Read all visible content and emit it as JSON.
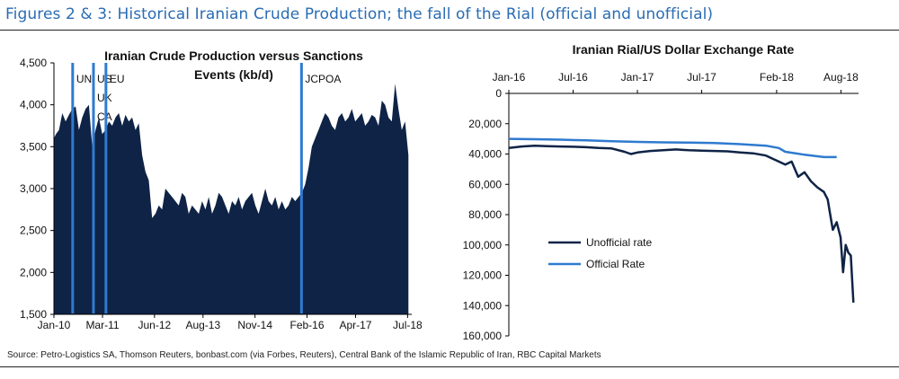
{
  "figure_title": "Figures 2 & 3: Historical Iranian Crude Production; the fall of the Rial (official and unofficial)",
  "source": "Source: Petro-Logistics SA, Thomson Reuters, bonbast.com (via Forbes, Reuters), Central Bank of the Islamic Republic of Iran, RBC Capital Markets",
  "colors": {
    "title": "#2a6cb3",
    "area_fill": "#0f2346",
    "event_line": "#2f7ad0",
    "unofficial": "#0f2346",
    "official": "#2f7ad0"
  },
  "chart_data": [
    {
      "type": "area",
      "title": "Iranian Crude Production versus Sanctions Events (kb/d)",
      "title_lines": [
        "Iranian Crude Production versus Sanctions",
        "Events (kb/d)"
      ],
      "xlabel": "",
      "ylabel": "",
      "xlim": [
        2010.0,
        2018.6
      ],
      "ylim": [
        1500,
        4500
      ],
      "y_ticks": [
        1500,
        2000,
        2500,
        3000,
        3500,
        4000,
        4500
      ],
      "y_tick_labels": [
        "1,500",
        "2,000",
        "2,500",
        "3,000",
        "3,500",
        "4,000",
        "4,500"
      ],
      "x_ticks": [
        2010.0,
        2011.167,
        2012.417,
        2013.583,
        2014.833,
        2016.083,
        2017.25,
        2018.5
      ],
      "x_tick_labels": [
        "Jan-10",
        "Mar-11",
        "Jun-12",
        "Aug-13",
        "Nov-14",
        "Feb-16",
        "Apr-17",
        "Jul-18"
      ],
      "events": [
        {
          "date": 2010.45,
          "label_lines": [
            "UN"
          ]
        },
        {
          "date": 2010.95,
          "label_lines": [
            "US",
            "UK",
            "CA"
          ]
        },
        {
          "date": 2011.25,
          "label_lines": [
            "EU"
          ]
        },
        {
          "date": 2015.95,
          "label_lines": [
            "JCPOA"
          ]
        }
      ],
      "series": [
        {
          "name": "Iranian Crude Production",
          "x": [
            2010.0,
            2010.05,
            2010.12,
            2010.2,
            2010.28,
            2010.36,
            2010.44,
            2010.52,
            2010.6,
            2010.68,
            2010.76,
            2010.84,
            2010.92,
            2011.0,
            2011.08,
            2011.16,
            2011.24,
            2011.32,
            2011.4,
            2011.48,
            2011.56,
            2011.64,
            2011.72,
            2011.8,
            2011.88,
            2011.96,
            2012.04,
            2012.12,
            2012.2,
            2012.28,
            2012.36,
            2012.44,
            2012.52,
            2012.6,
            2012.68,
            2012.76,
            2012.84,
            2012.92,
            2013.0,
            2013.08,
            2013.16,
            2013.24,
            2013.32,
            2013.4,
            2013.48,
            2013.56,
            2013.64,
            2013.72,
            2013.8,
            2013.88,
            2013.96,
            2014.04,
            2014.12,
            2014.2,
            2014.28,
            2014.36,
            2014.44,
            2014.52,
            2014.6,
            2014.68,
            2014.76,
            2014.84,
            2014.92,
            2015.0,
            2015.08,
            2015.16,
            2015.24,
            2015.32,
            2015.4,
            2015.48,
            2015.56,
            2015.64,
            2015.72,
            2015.8,
            2015.88,
            2015.96,
            2016.04,
            2016.12,
            2016.2,
            2016.28,
            2016.36,
            2016.44,
            2016.52,
            2016.6,
            2016.68,
            2016.76,
            2016.84,
            2016.92,
            2017.0,
            2017.08,
            2017.16,
            2017.24,
            2017.32,
            2017.4,
            2017.48,
            2017.56,
            2017.64,
            2017.72,
            2017.8,
            2017.88,
            2017.96,
            2018.04,
            2018.12,
            2018.2,
            2018.28,
            2018.36,
            2018.44,
            2018.52
          ],
          "values": [
            3600,
            3650,
            3700,
            3900,
            3800,
            3880,
            3950,
            3980,
            3700,
            3850,
            3950,
            4000,
            3500,
            3700,
            3850,
            3650,
            3700,
            3800,
            3750,
            3850,
            3900,
            3750,
            3880,
            3800,
            3850,
            3700,
            3780,
            3400,
            3200,
            3100,
            2650,
            2700,
            2800,
            2750,
            3000,
            2950,
            2900,
            2850,
            2800,
            2950,
            2900,
            2700,
            2800,
            2750,
            2700,
            2850,
            2750,
            2900,
            2700,
            2800,
            2950,
            2900,
            2800,
            2700,
            2850,
            2800,
            2900,
            2750,
            2850,
            2900,
            2950,
            2800,
            2700,
            2850,
            3000,
            2850,
            2800,
            2900,
            2750,
            2850,
            2750,
            2800,
            2900,
            2850,
            2900,
            2950,
            3050,
            3250,
            3500,
            3600,
            3700,
            3800,
            3900,
            3850,
            3750,
            3700,
            3850,
            3900,
            3800,
            3850,
            3950,
            3800,
            3850,
            3900,
            3750,
            3800,
            3880,
            3850,
            3750,
            4050,
            4000,
            3850,
            3800,
            4250,
            3950,
            3700,
            3800,
            3400
          ]
        }
      ]
    },
    {
      "type": "line",
      "title": "Iranian Rial/US Dollar Exchange Rate",
      "xlabel": "",
      "ylabel": "",
      "y_inverted": true,
      "xlim": [
        2016.0,
        2018.72
      ],
      "ylim": [
        0,
        160000
      ],
      "y_ticks": [
        0,
        20000,
        40000,
        60000,
        80000,
        100000,
        120000,
        140000,
        160000
      ],
      "y_tick_labels": [
        "0",
        "20,000",
        "40,000",
        "60,000",
        "80,000",
        "100,000",
        "120,000",
        "140,000",
        "160,000"
      ],
      "x_ticks": [
        2016.0,
        2016.5,
        2017.0,
        2017.5,
        2018.083,
        2018.583
      ],
      "x_tick_labels": [
        "Jan-16",
        "Jul-16",
        "Jan-17",
        "Jul-17",
        "Feb-18",
        "Aug-18"
      ],
      "legend": "lower-left",
      "series": [
        {
          "name": "Unofficial rate",
          "x": [
            2016.0,
            2016.1,
            2016.2,
            2016.3,
            2016.4,
            2016.5,
            2016.6,
            2016.7,
            2016.8,
            2016.9,
            2016.95,
            2017.0,
            2017.1,
            2017.2,
            2017.3,
            2017.4,
            2017.5,
            2017.6,
            2017.7,
            2017.8,
            2017.9,
            2018.0,
            2018.05,
            2018.1,
            2018.15,
            2018.2,
            2018.25,
            2018.3,
            2018.35,
            2018.4,
            2018.45,
            2018.48,
            2018.5,
            2018.52,
            2018.55,
            2018.58,
            2018.6,
            2018.62,
            2018.64,
            2018.66,
            2018.68
          ],
          "values": [
            36000,
            35000,
            34500,
            34800,
            35000,
            35200,
            35500,
            36000,
            36300,
            38500,
            40000,
            39000,
            38000,
            37500,
            37000,
            37500,
            37800,
            38000,
            38200,
            39000,
            39500,
            41000,
            43000,
            45000,
            47000,
            45000,
            55000,
            52000,
            58000,
            62000,
            65000,
            70000,
            80000,
            90000,
            85000,
            95000,
            118000,
            100000,
            105000,
            107000,
            138000
          ]
        },
        {
          "name": "Official Rate",
          "x": [
            2016.0,
            2016.2,
            2016.4,
            2016.6,
            2016.8,
            2017.0,
            2017.2,
            2017.4,
            2017.6,
            2017.8,
            2018.0,
            2018.1,
            2018.15,
            2018.3,
            2018.45,
            2018.55
          ],
          "values": [
            30000,
            30200,
            30500,
            31000,
            31500,
            32000,
            32300,
            32500,
            32800,
            33500,
            34500,
            36000,
            38500,
            40500,
            42000,
            42000
          ]
        }
      ]
    }
  ]
}
